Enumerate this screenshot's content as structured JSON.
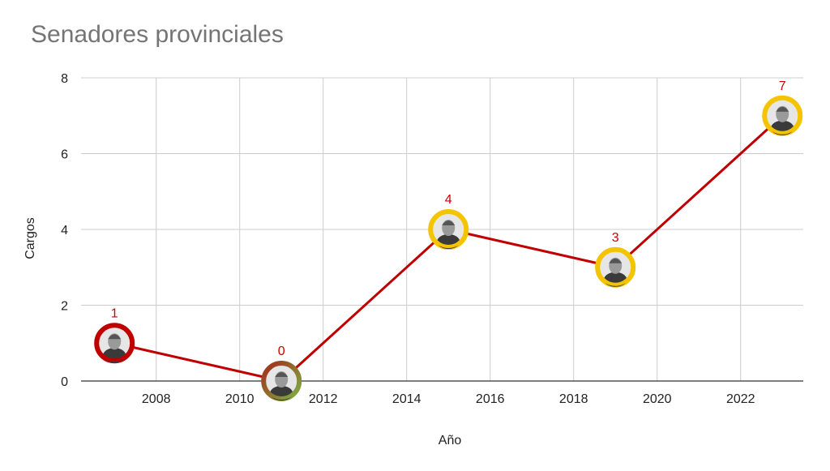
{
  "chart_data": {
    "type": "line",
    "title": "Senadores provinciales",
    "xlabel": "Año",
    "ylabel": "Cargos",
    "xlim": [
      2006.2,
      2023.5
    ],
    "ylim": [
      0,
      8
    ],
    "x_ticks": [
      2008,
      2010,
      2012,
      2014,
      2016,
      2018,
      2020,
      2022
    ],
    "y_ticks": [
      0,
      2,
      4,
      6,
      8
    ],
    "grid": true,
    "legend": "none",
    "line_color": "#c00000",
    "label_color": "#cc0000",
    "points": [
      {
        "x": 2007,
        "y": 1,
        "label": "1",
        "ring_color": "#c00000",
        "icon": "person-portrait-icon"
      },
      {
        "x": 2011,
        "y": 0,
        "label": "0",
        "ring_color": "#7cb342",
        "ring_color_2": "#a52a1a",
        "icon": "person-portrait-icon"
      },
      {
        "x": 2015,
        "y": 4,
        "label": "4",
        "ring_color": "#f5c400",
        "icon": "person-portrait-icon"
      },
      {
        "x": 2019,
        "y": 3,
        "label": "3",
        "ring_color": "#f5c400",
        "icon": "person-portrait-icon"
      },
      {
        "x": 2023,
        "y": 7,
        "label": "7",
        "ring_color": "#f5c400",
        "icon": "person-portrait-icon"
      }
    ]
  }
}
